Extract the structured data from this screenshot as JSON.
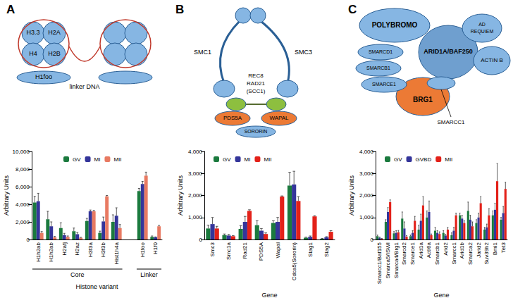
{
  "chart_data": [
    {
      "type": "bar",
      "title": "A",
      "categories": [
        "H1h2ab",
        "H1h2ab",
        "H2afj",
        "H2az",
        "H3f3a",
        "H3f3b",
        "Hist1h4a",
        null,
        "H1foo",
        "H1f0"
      ],
      "series": [
        {
          "name": "GV",
          "color": "#1b7a3e",
          "values": [
            4200,
            2300,
            1300,
            950,
            2100,
            750,
            2000,
            null,
            5500,
            300
          ],
          "errors": [
            700,
            900,
            600,
            350,
            300,
            200,
            800,
            null,
            300,
            100
          ]
        },
        {
          "name": "MI",
          "color": "#34359a",
          "values": [
            4350,
            1500,
            500,
            600,
            3200,
            2050,
            2700,
            null,
            6300,
            250
          ],
          "errors": [
            900,
            500,
            200,
            200,
            150,
            500,
            900,
            null,
            300,
            50
          ]
        },
        {
          "name": "MII",
          "color": "#e87a62",
          "values": [
            750,
            250,
            300,
            200,
            3200,
            4900,
            1300,
            null,
            7250,
            1500
          ],
          "errors": [
            150,
            100,
            100,
            50,
            100,
            100,
            400,
            null,
            400,
            100
          ]
        }
      ],
      "groups": [
        {
          "label": "Core",
          "from": "H1h2ab",
          "to": "Hist1h4a"
        },
        {
          "label": "Linker",
          "from": "H1foo",
          "to": "H1f0"
        }
      ],
      "x_label": "Histone variant",
      "y_label": "Arbitrary Units",
      "ylim": [
        0,
        10000
      ],
      "yticks": [
        0,
        2000,
        4000,
        6000,
        8000,
        10000
      ],
      "grid": false,
      "legend": "top-left"
    },
    {
      "type": "bar",
      "title": "B",
      "categories": [
        "Smc3",
        "Smc1a",
        "Rad21",
        "PDS5A",
        "Wapal",
        "Cdca5(Sororin)",
        "Stag1",
        "Stag2"
      ],
      "series": [
        {
          "name": "GV",
          "color": "#1b7a3e",
          "values": [
            500,
            200,
            480,
            650,
            750,
            2450,
            80,
            30
          ],
          "errors": [
            150,
            50,
            150,
            200,
            100,
            600,
            30,
            20
          ]
        },
        {
          "name": "MI",
          "color": "#34359a",
          "values": [
            700,
            180,
            800,
            400,
            800,
            2500,
            120,
            100
          ],
          "errors": [
            300,
            50,
            250,
            100,
            200,
            600,
            40,
            30
          ]
        },
        {
          "name": "MII",
          "color": "#e32119",
          "values": [
            500,
            150,
            1300,
            250,
            1950,
            1750,
            1050,
            350
          ],
          "errors": [
            100,
            30,
            50,
            50,
            30,
            200,
            30,
            50
          ]
        }
      ],
      "x_label": "Gene",
      "y_label": "Arbitrary Units",
      "ylim": [
        0,
        4000
      ],
      "yticks": [
        0,
        1000,
        2000,
        3000,
        4000
      ],
      "grid": false,
      "legend": "top-left"
    },
    {
      "type": "bar",
      "title": "C",
      "categories": [
        "Smarcc1/Baf155",
        "Smarca5/ISWI",
        "Smarca4/Brg1",
        "Smarcd2",
        "Smarce1",
        "Arid1a",
        "Actl6a",
        "Smarcb1",
        "Arid2",
        "Smarcc1",
        "Arid1b",
        "Smarca2",
        "Jarid2",
        "Suv39h2",
        "Bmi1",
        "Tet3"
      ],
      "series": [
        {
          "name": "GV",
          "color": "#1b7a3e",
          "values": [
            150,
            800,
            280,
            950,
            150,
            450,
            1000,
            400,
            300,
            200,
            1100,
            1300,
            750,
            450,
            1100,
            900
          ],
          "errors": [
            50,
            100,
            80,
            300,
            50,
            200,
            300,
            150,
            100,
            100,
            100,
            400,
            150,
            100,
            200,
            100
          ]
        },
        {
          "name": "GVBD",
          "color": "#34359a",
          "values": [
            80,
            1250,
            300,
            500,
            300,
            850,
            1250,
            300,
            180,
            400,
            950,
            900,
            1000,
            550,
            1350,
            1200
          ],
          "errors": [
            30,
            200,
            100,
            300,
            100,
            300,
            500,
            100,
            50,
            150,
            150,
            200,
            200,
            150,
            300,
            300
          ]
        },
        {
          "name": "MII",
          "color": "#e32119",
          "values": [
            30,
            1700,
            330,
            130,
            850,
            1550,
            200,
            250,
            450,
            1100,
            750,
            600,
            1650,
            1100,
            2650,
            2300
          ],
          "errors": [
            20,
            100,
            80,
            50,
            200,
            400,
            50,
            100,
            100,
            100,
            100,
            200,
            300,
            300,
            800,
            300
          ]
        }
      ],
      "x_label": "Gene",
      "y_label": "Arbitrary Units",
      "ylim": [
        0,
        4000
      ],
      "yticks": [
        0,
        1000,
        2000,
        3000,
        4000
      ],
      "grid": false,
      "legend": "top-left"
    }
  ],
  "diagrams": {
    "A": {
      "nucleosome": [
        "H3.3",
        "H2A",
        "H4",
        "H2B"
      ],
      "linker_histone": "H1foo",
      "linker": "linker DNA"
    },
    "B": {
      "arms": [
        "SMC1",
        "SMC3"
      ],
      "kleisin": [
        "REC8",
        "RAD21",
        "(SCC1)"
      ],
      "regulators": [
        "PDS5A",
        "WAPAL"
      ],
      "partner": "SORORIN"
    },
    "C": {
      "subunits": [
        "POLYBROMO",
        "ARID1A/BAF250",
        "AD REQUIEM",
        "ACTIN B",
        "SMARCD1",
        "SMARCB1",
        "SMARCE1",
        "BRG1"
      ],
      "core": "SMARCC1"
    }
  }
}
